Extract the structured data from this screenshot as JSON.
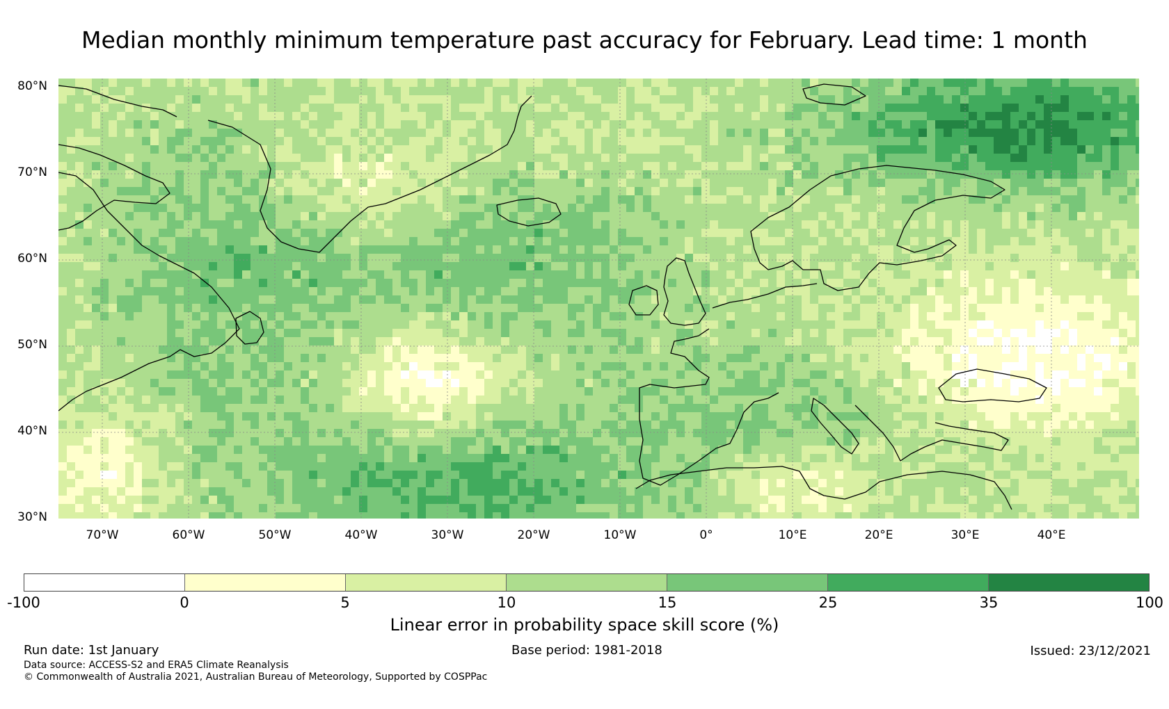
{
  "title": "Median monthly minimum temperature past accuracy for February. Lead time: 1 month",
  "map": {
    "lat_labels": [
      "80°N",
      "70°N",
      "60°N",
      "50°N",
      "40°N",
      "30°N"
    ],
    "lon_labels": [
      "70°W",
      "60°W",
      "50°W",
      "40°W",
      "30°W",
      "20°W",
      "10°W",
      "0°",
      "10°E",
      "20°E",
      "30°E",
      "40°E"
    ],
    "extent": {
      "lon_min": -75,
      "lon_max": 50,
      "lat_min": 30,
      "lat_max": 81
    },
    "colors": {
      "land_outline": "#000000",
      "gridline": "#888888"
    }
  },
  "colorbar": {
    "ticks": [
      "-100",
      "0",
      "5",
      "10",
      "15",
      "25",
      "35",
      "100"
    ],
    "colors": [
      "#ffffff",
      "#ffffcc",
      "#d9f0a3",
      "#addd8e",
      "#78c679",
      "#41ab5d",
      "#238443"
    ],
    "label": "Linear error in probability space skill score (%)"
  },
  "footer": {
    "run_date": "Run date: 1st January",
    "base_period": "Base period: 1981-2018",
    "issued": "Issued: 23/12/2021",
    "data_source": "Data source: ACCESS-S2 and ERA5 Climate Reanalysis",
    "copyright": "© Commonwealth of Australia 2021, Australian Bureau of Meteorology, Supported by COSPPac"
  }
}
